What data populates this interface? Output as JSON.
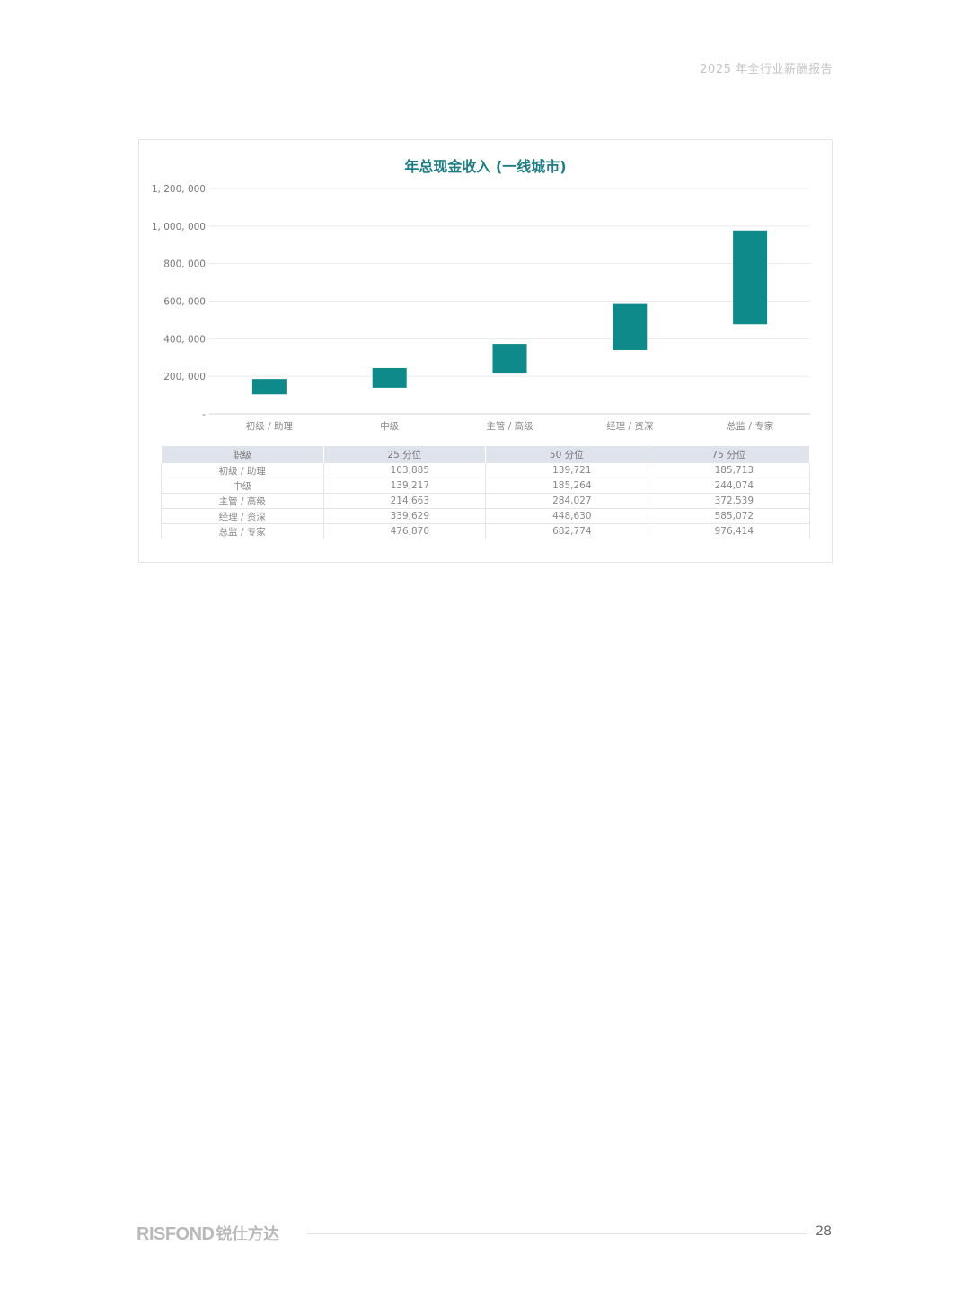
{
  "header": {
    "title": "2025 年全行业薪酬报告"
  },
  "chart_data": {
    "type": "bar",
    "subtype": "floating-range",
    "title": "年总现金收入 (一线城市)",
    "categories": [
      "初级 / 助理",
      "中级",
      "主管 / 高级",
      "经理 / 资深",
      "总监 / 专家"
    ],
    "series": [
      {
        "name": "25 分位",
        "values": [
          103885,
          139217,
          214663,
          339629,
          476870
        ]
      },
      {
        "name": "75 分位",
        "values": [
          185713,
          244074,
          372539,
          585072,
          976414
        ]
      }
    ],
    "y_ticks": [
      "-",
      "200, 000",
      "400, 000",
      "600, 000",
      "800, 000",
      "1, 000, 000",
      "1, 200, 000"
    ],
    "ylim": [
      0,
      1200000
    ],
    "grid": true,
    "bar_color": "#0e8a8a"
  },
  "table": {
    "headers": [
      "职级",
      "25 分位",
      "50 分位",
      "75 分位"
    ],
    "rows": [
      [
        "初级 / 助理",
        "103,885",
        "139,721",
        "185,713"
      ],
      [
        "中级",
        "139,217",
        "185,264",
        "244,074"
      ],
      [
        "主管 / 高级",
        "214,663",
        "284,027",
        "372,539"
      ],
      [
        "经理 / 资深",
        "339,629",
        "448,630",
        "585,072"
      ],
      [
        "总监 / 专家",
        "476,870",
        "682,774",
        "976,414"
      ]
    ]
  },
  "footer": {
    "logo_text": "RISFOND",
    "logo_cn": "锐仕方达",
    "page_number": "28"
  }
}
